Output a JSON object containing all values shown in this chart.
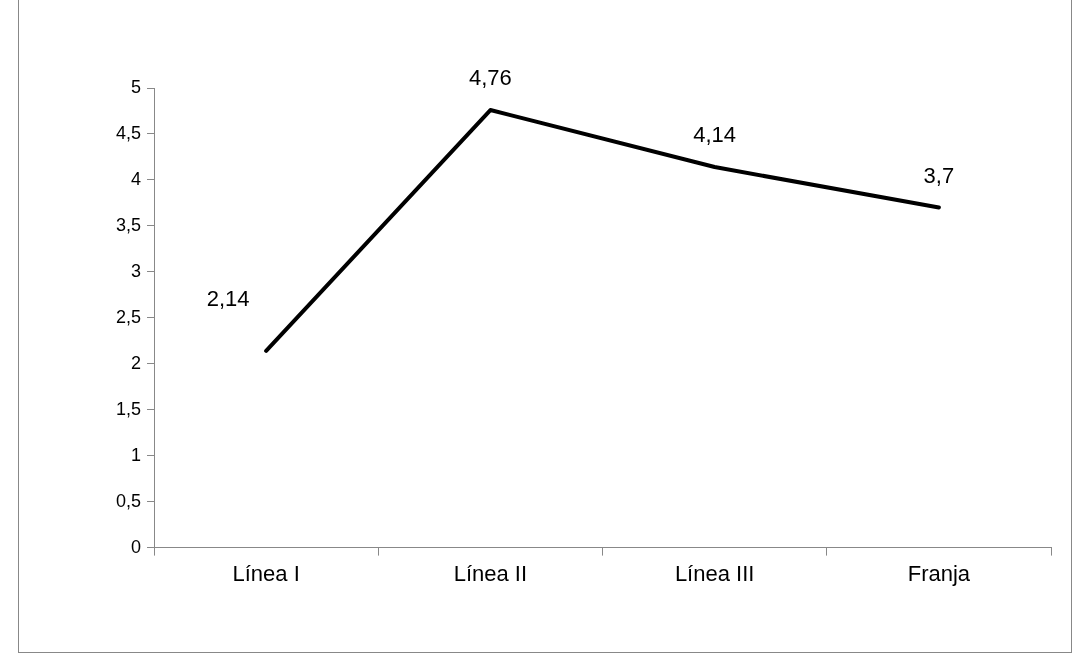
{
  "chart_data": {
    "type": "line",
    "categories": [
      "Línea I",
      "Línea II",
      "Línea III",
      "Franja"
    ],
    "series": [
      {
        "color": "#000000",
        "values": [
          2.14,
          4.76,
          4.14,
          3.7
        ],
        "value_labels": [
          "2,14",
          "4,76",
          "4,14",
          "3,7"
        ]
      }
    ],
    "ylim": [
      0,
      5
    ],
    "yticks": [
      0,
      {
        "value": 0.5,
        "label": "0,5"
      },
      1,
      {
        "value": 1.5,
        "label": "1,5"
      },
      2,
      {
        "value": 2.5,
        "label": "2,5"
      },
      3,
      {
        "value": 3.5,
        "label": "3,5"
      },
      4,
      {
        "value": 4.5,
        "label": "4,5"
      },
      5
    ],
    "grid": false,
    "legend": false,
    "marker": "none",
    "line_style": "solid"
  }
}
